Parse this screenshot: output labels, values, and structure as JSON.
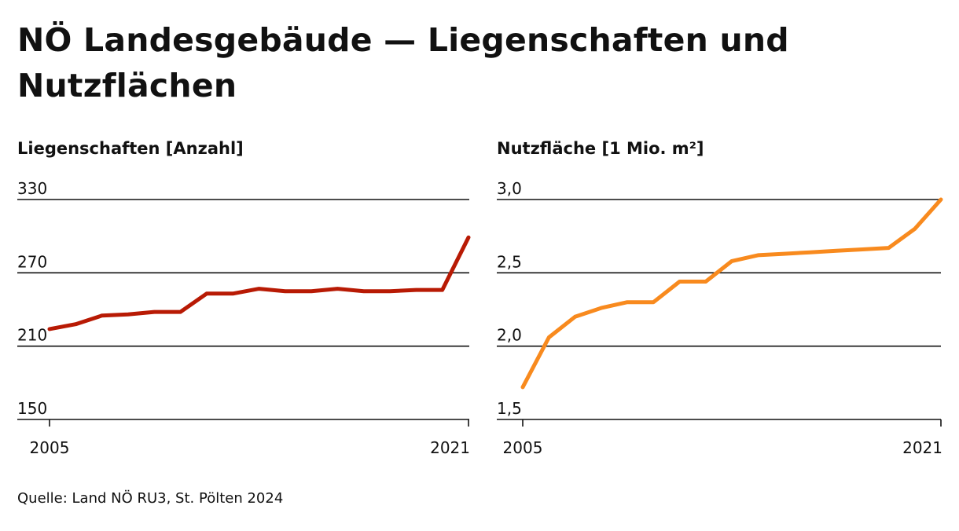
{
  "title": "NÖ Landesgebäude — Liegenschaften und Nutzflächen",
  "source": "Quelle: Land NÖ RU3, St. Pölten 2024",
  "colors": {
    "left": "#b81a04",
    "right": "#f88a1e",
    "text": "#111111"
  },
  "chart_data": [
    {
      "type": "line",
      "title": "Liegenschaften [Anzahl]",
      "x": [
        2005,
        2006,
        2007,
        2008,
        2009,
        2010,
        2011,
        2012,
        2013,
        2014,
        2015,
        2016,
        2017,
        2018,
        2019,
        2020,
        2021
      ],
      "series": [
        {
          "values": [
            224,
            228,
            235,
            236,
            238,
            238,
            253,
            253,
            257,
            255,
            255,
            257,
            255,
            255,
            256,
            256,
            299
          ]
        }
      ],
      "x_tick_labels": [
        "2005",
        "2021"
      ],
      "y_tick_labels": [
        "330",
        "270",
        "210",
        "150"
      ],
      "ylim": [
        150,
        330
      ],
      "grid": true
    },
    {
      "type": "line",
      "title": "Nutzfläche [1 Mio. m²]",
      "x": [
        2005,
        2006,
        2007,
        2008,
        2009,
        2010,
        2011,
        2012,
        2013,
        2014,
        2015,
        2016,
        2017,
        2018,
        2019,
        2020,
        2021
      ],
      "series": [
        {
          "values": [
            1.72,
            2.06,
            2.2,
            2.26,
            2.3,
            2.3,
            2.44,
            2.44,
            2.58,
            2.62,
            2.63,
            2.64,
            2.65,
            2.66,
            2.67,
            2.8,
            3.0
          ]
        }
      ],
      "x_tick_labels": [
        "2005",
        "2021"
      ],
      "y_tick_labels": [
        "3,0",
        "2,5",
        "2,0",
        "1,5"
      ],
      "ylim": [
        1.5,
        3.0
      ],
      "grid": true
    }
  ]
}
